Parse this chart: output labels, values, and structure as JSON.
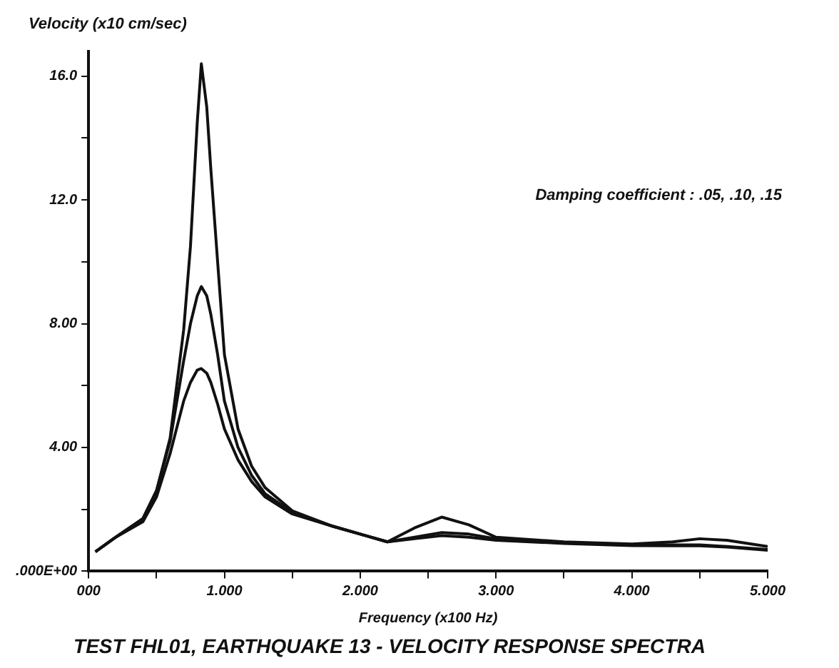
{
  "chart_data": {
    "type": "line",
    "title": "TEST FHL01, EARTHQUAKE 13 - VELOCITY RESPONSE SPECTRA",
    "xlabel": "Frequency (x100 Hz)",
    "ylabel": "Velocity (x10 cm/sec)",
    "annotations": [
      "Damping coefficient : .05, .10, .15"
    ],
    "x": [
      0.05,
      0.2,
      0.4,
      0.5,
      0.6,
      0.7,
      0.75,
      0.8,
      0.83,
      0.87,
      0.9,
      0.95,
      1.0,
      1.1,
      1.2,
      1.3,
      1.5,
      1.8,
      2.0,
      2.2,
      2.4,
      2.6,
      2.8,
      3.0,
      3.5,
      4.0,
      4.3,
      4.5,
      4.7,
      5.0
    ],
    "series": [
      {
        "color": "#111111",
        "values": [
          0.63,
          1.1,
          1.7,
          2.6,
          4.3,
          7.8,
          10.5,
          14.5,
          16.4,
          15,
          13,
          10,
          7,
          4.6,
          3.4,
          2.7,
          1.95,
          1.45,
          1.2,
          0.95,
          1.4,
          1.75,
          1.5,
          1.1,
          0.95,
          0.88,
          0.95,
          1.05,
          1.0,
          0.8
        ]
      },
      {
        "color": "#111111",
        "values": [
          0.63,
          1.1,
          1.7,
          2.6,
          4.2,
          6.8,
          8.0,
          8.9,
          9.2,
          8.9,
          8.3,
          7.0,
          5.5,
          4.0,
          3.1,
          2.5,
          1.9,
          1.45,
          1.2,
          0.95,
          1.1,
          1.25,
          1.2,
          1.05,
          0.92,
          0.85,
          0.85,
          0.85,
          0.8,
          0.7
        ]
      },
      {
        "color": "#111111",
        "values": [
          0.63,
          1.1,
          1.6,
          2.4,
          3.8,
          5.5,
          6.1,
          6.5,
          6.55,
          6.4,
          6.1,
          5.4,
          4.6,
          3.6,
          2.9,
          2.4,
          1.85,
          1.45,
          1.2,
          0.95,
          1.05,
          1.15,
          1.1,
          1.0,
          0.9,
          0.83,
          0.82,
          0.82,
          0.78,
          0.68
        ]
      }
    ],
    "xlim": [
      0,
      5
    ],
    "ylim": [
      0,
      16.8
    ],
    "xticks": [
      {
        "value": 0,
        "label": "000"
      },
      {
        "value": 0.5,
        "label": null
      },
      {
        "value": 1,
        "label": "1.000"
      },
      {
        "value": 1.5,
        "label": null
      },
      {
        "value": 2,
        "label": "2.000"
      },
      {
        "value": 2.5,
        "label": null
      },
      {
        "value": 3,
        "label": "3.000"
      },
      {
        "value": 3.5,
        "label": null
      },
      {
        "value": 4,
        "label": "4.000"
      },
      {
        "value": 4.5,
        "label": null
      },
      {
        "value": 5,
        "label": "5.000"
      }
    ],
    "yticks": [
      {
        "value": 0,
        "label": ".000E+00"
      },
      {
        "value": 2,
        "label": null
      },
      {
        "value": 4,
        "label": "4.00"
      },
      {
        "value": 6,
        "label": null
      },
      {
        "value": 8,
        "label": "8.00"
      },
      {
        "value": 10,
        "label": null
      },
      {
        "value": 12,
        "label": "12.0"
      },
      {
        "value": 14,
        "label": null
      },
      {
        "value": 16,
        "label": "16.0"
      }
    ],
    "grid": false,
    "legend": false,
    "marker": "none",
    "line_style": "solid"
  }
}
